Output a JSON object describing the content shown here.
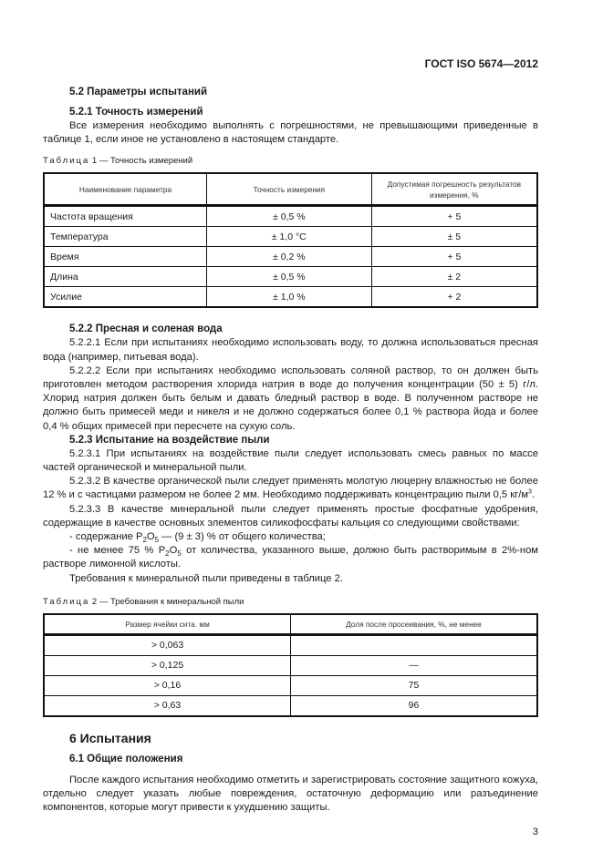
{
  "header": "ГОСТ ISO 5674—2012",
  "s52": "5.2  Параметры испытаний",
  "s521": "5.2.1  Точность измерений",
  "p521": "Все измерения необходимо выполнять с погрешностями, не превышающими приведенные в таблице 1, если иное не установлено в настоящем стандарте.",
  "table1": {
    "caption_label": "Таблица",
    "caption_text": "1 — Точность измерений",
    "headers": [
      "Наименование параметра",
      "Точность измерения",
      "Допустимая погрешность результатов измерения, %"
    ],
    "rows": [
      [
        "Частота вращения",
        "± 0,5 %",
        "+ 5"
      ],
      [
        "Температура",
        "± 1,0 °С",
        "± 5"
      ],
      [
        "Время",
        "± 0,2 %",
        "+ 5"
      ],
      [
        "Длина",
        "± 0,5 %",
        "± 2"
      ],
      [
        "Усилие",
        "± 1,0 %",
        "+ 2"
      ]
    ]
  },
  "s522": "5.2.2  Пресная и соленая вода",
  "p5221": "5.2.2.1  Если при испытаниях необходимо использовать воду, то должна использоваться пресная вода (например, питьевая вода).",
  "p5222": "5.2.2.2  Если при испытаниях необходимо использовать соляной раствор, то он должен быть приготовлен методом растворения хлорида натрия в воде до получения концентрации (50 ± 5) г/л. Хлорид натрия должен быть белым и давать бледный раствор в воде. В полученном растворе не должно быть примесей меди и никеля и не должно содержаться более 0,1 % раствора йода и более 0,4 % общих примесей при пересчете на сухую соль.",
  "s523": "5.2.3  Испытание на воздействие пыли",
  "p5231": "5.2.3.1  При испытаниях на воздействие пыли следует использовать смесь равных по массе частей органической и минеральной пыли.",
  "p5232": "5.2.3.2  В качестве органической пыли следует применять молотую люцерну влажностью не более 12 % и с частицами размером не более 2 мм. Необходимо поддерживать концентрацию пыли 0,5 кг/м",
  "p5232_sup": "3",
  "p5232_end": ".",
  "p5233": "5.2.3.3  В качестве минеральной пыли следует применять простые фосфатные удобрения, содержащие в качестве основных элементов силикофосфаты кальция со следующими свойствами:",
  "bullet1": {
    "a": "-  содержание P",
    "s1": "2",
    "b": "O",
    "s2": "5",
    "c": " — (9 ± 3) % от общего количества;"
  },
  "bullet2": {
    "a": "-  не менее 75 % P",
    "s1": "2",
    "b": "O",
    "s2": "5",
    "c": " от количества, указанного выше, должно быть растворимым в 2%-ном растворе лимонной кислоты."
  },
  "p_req": "Требования к минеральной пыли приведены в таблице 2.",
  "table2": {
    "caption_label": "Таблица",
    "caption_text": "2 — Требования к минеральной пыли",
    "headers": [
      "Размер ячейки сита. мм",
      "Доля после просеивания, %, не менее"
    ],
    "rows": [
      [
        "> 0,063",
        ""
      ],
      [
        "> 0,125",
        "—"
      ],
      [
        "> 0,16",
        "75"
      ],
      [
        "> 0,63",
        "96"
      ]
    ]
  },
  "s6": "6  Испытания",
  "s61": "6.1  Общие положения",
  "p61": "После каждого испытания необходимо отметить и зарегистрировать состояние защитного кожуха, отдельно следует указать любые повреждения, остаточную деформацию или разъединение компонентов, которые могут привести к ухудшению защиты.",
  "page_number": "3"
}
